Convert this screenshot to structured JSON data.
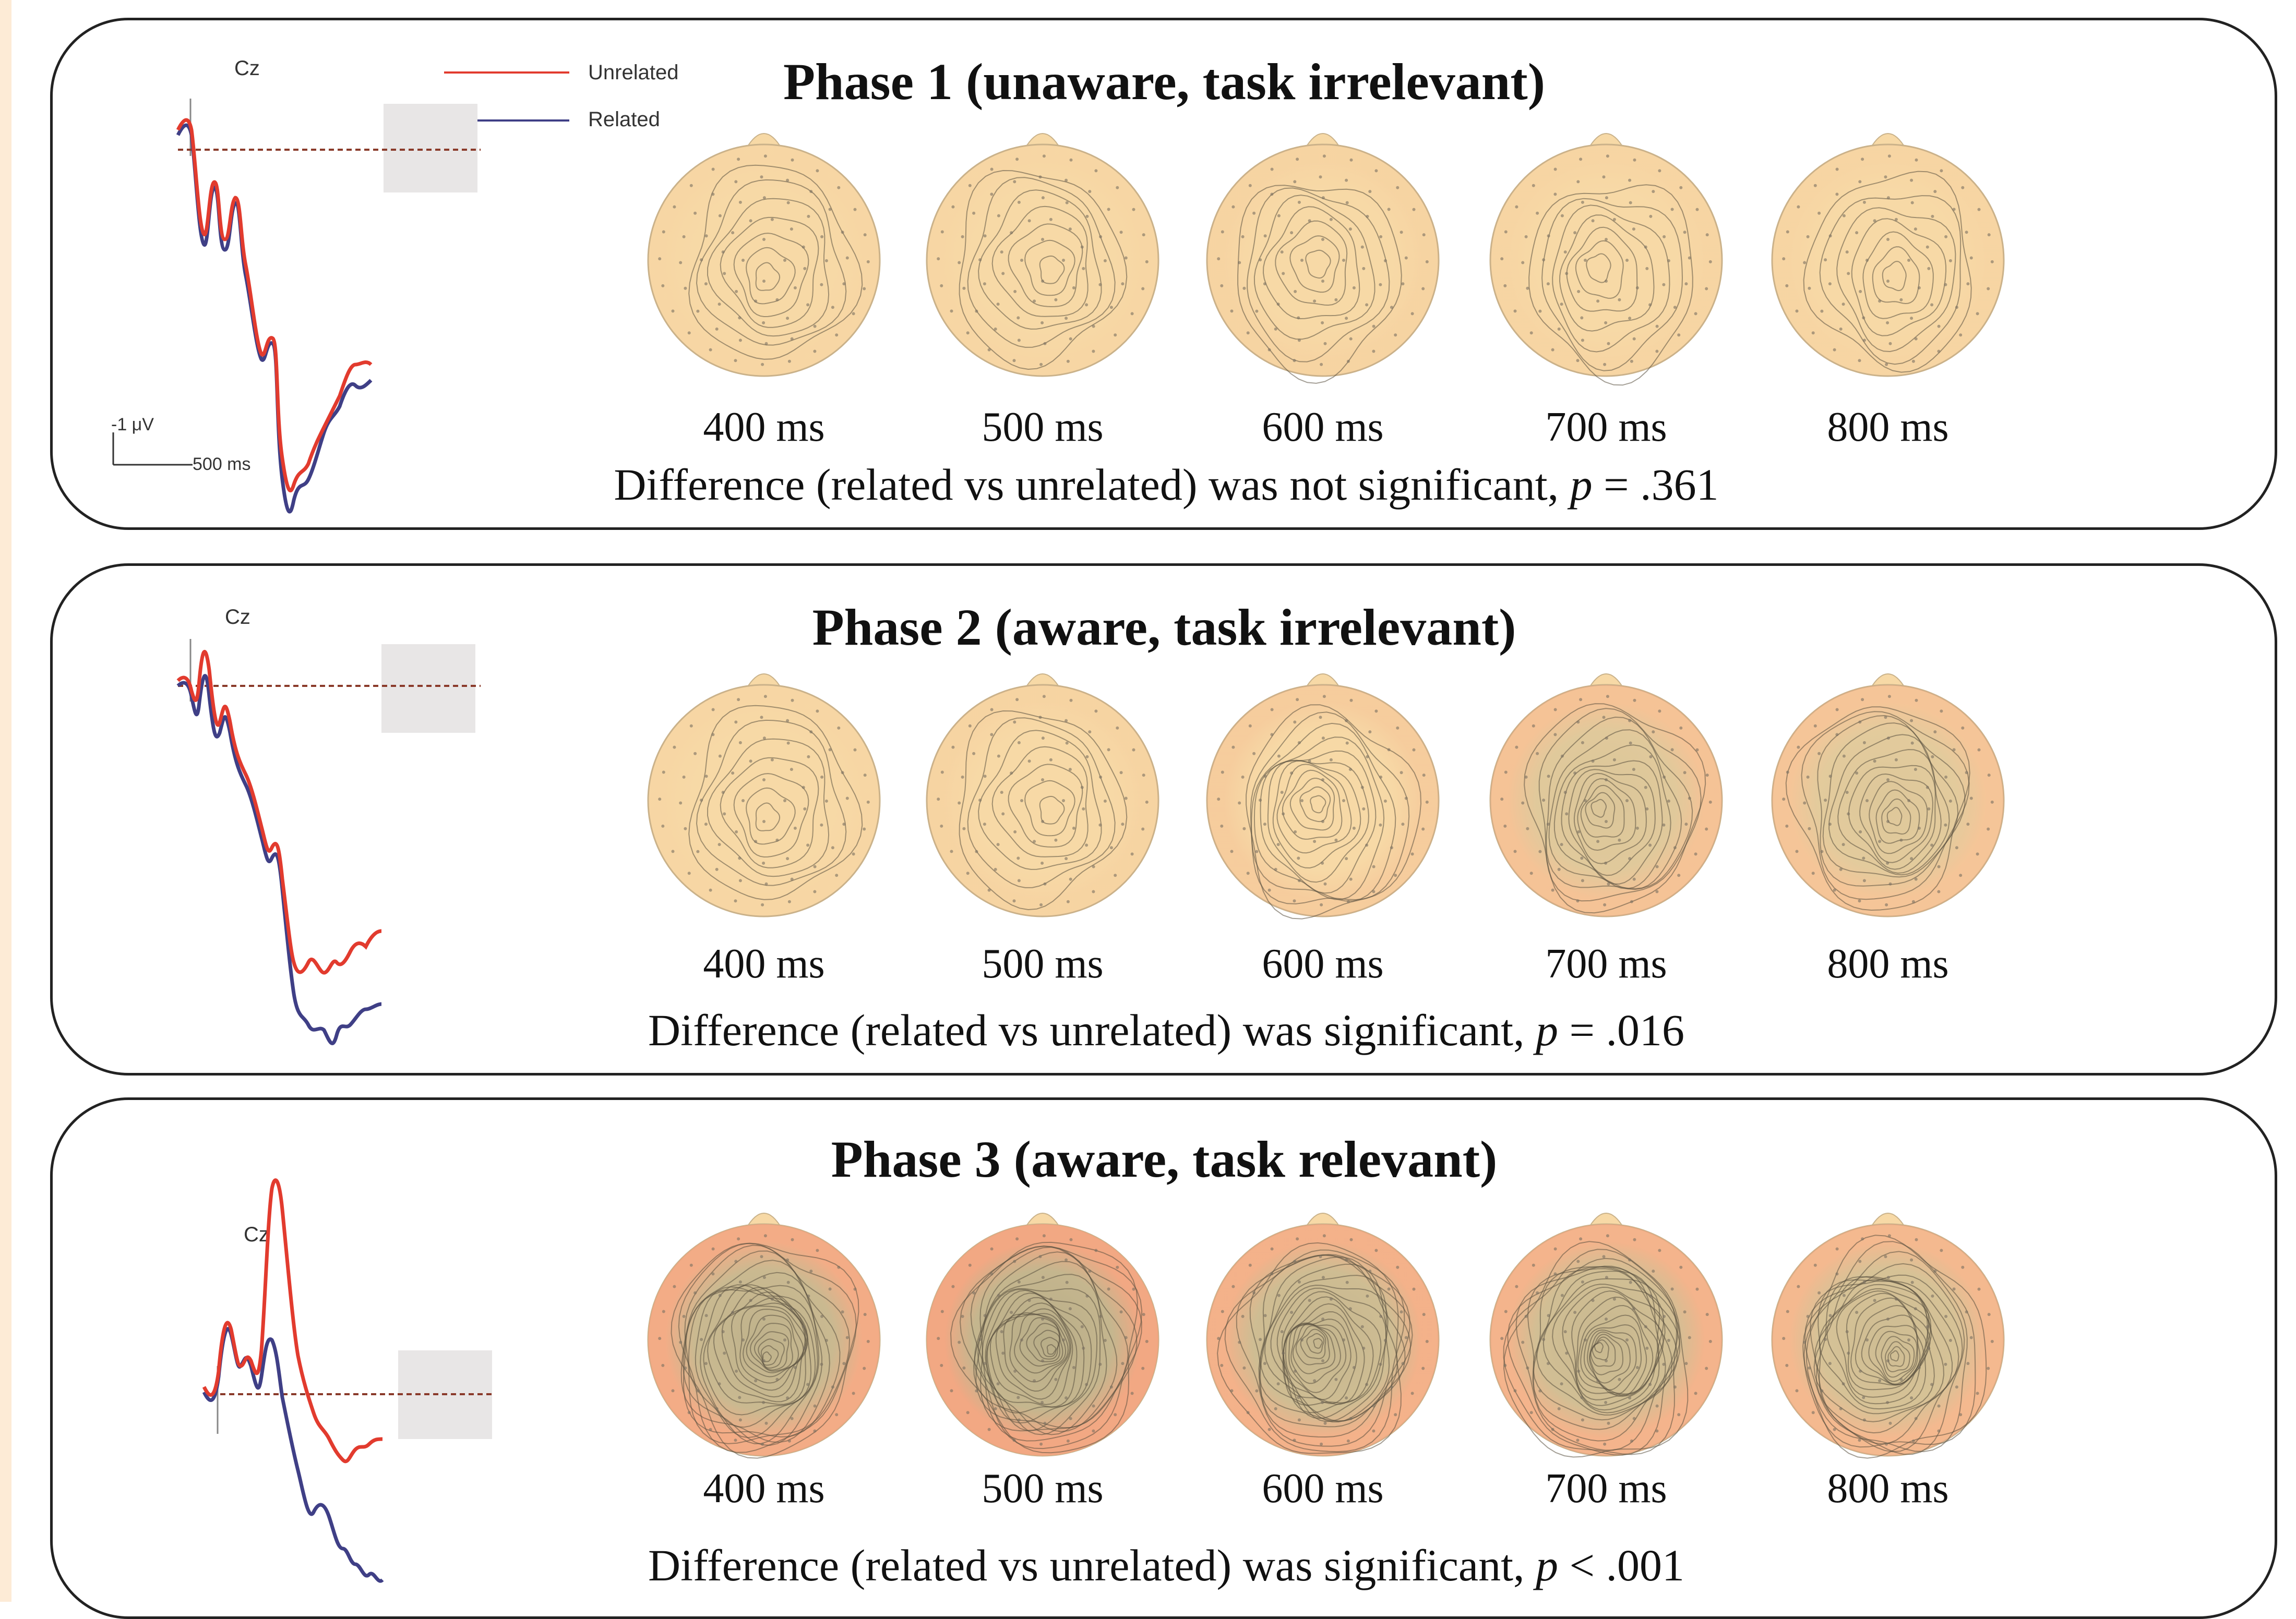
{
  "legend": {
    "unrelated": "Unrelated",
    "related": "Related",
    "unrelated_color": "#e23b2e",
    "related_color": "#3f3f86"
  },
  "scale_bar": {
    "amplitude": "-1 μV",
    "time": "500 ms"
  },
  "electrode": "Cz",
  "phases": [
    {
      "title": "Phase 1 (unaware, task irrelevant)",
      "times": [
        "400 ms",
        "500 ms",
        "600 ms",
        "700 ms",
        "800 ms"
      ],
      "result_prefix": "Difference (related vs unrelated) was not significant, ",
      "result_p": "p",
      "result_value": " = .361",
      "topo_effect": [
        0.05,
        0.05,
        0.1,
        0.08,
        0.08
      ]
    },
    {
      "title": "Phase 2 (aware, task irrelevant)",
      "times": [
        "400 ms",
        "500 ms",
        "600 ms",
        "700 ms",
        "800 ms"
      ],
      "result_prefix": "Difference (related vs unrelated) was significant, ",
      "result_p": "p",
      "result_value": " = .016",
      "topo_effect": [
        0.05,
        0.1,
        0.25,
        0.45,
        0.4
      ]
    },
    {
      "title": "Phase 3 (aware, task relevant)",
      "times": [
        "400 ms",
        "500 ms",
        "600 ms",
        "700 ms",
        "800 ms"
      ],
      "result_prefix": "Difference (related vs unrelated) was significant, ",
      "result_p": "p",
      "result_value": " < .001",
      "topo_effect": [
        0.9,
        1.0,
        0.8,
        0.75,
        0.65
      ]
    }
  ],
  "colors": {
    "topo_base": "#f7d9a6",
    "topo_outline": "#c9b28a",
    "topo_effect_edge": "#f2a27f",
    "topo_effect_center": "#b8ad88",
    "contour": "#5a5040",
    "baseline": "#8a3a2a",
    "window_gray": "#e8e6e6"
  }
}
